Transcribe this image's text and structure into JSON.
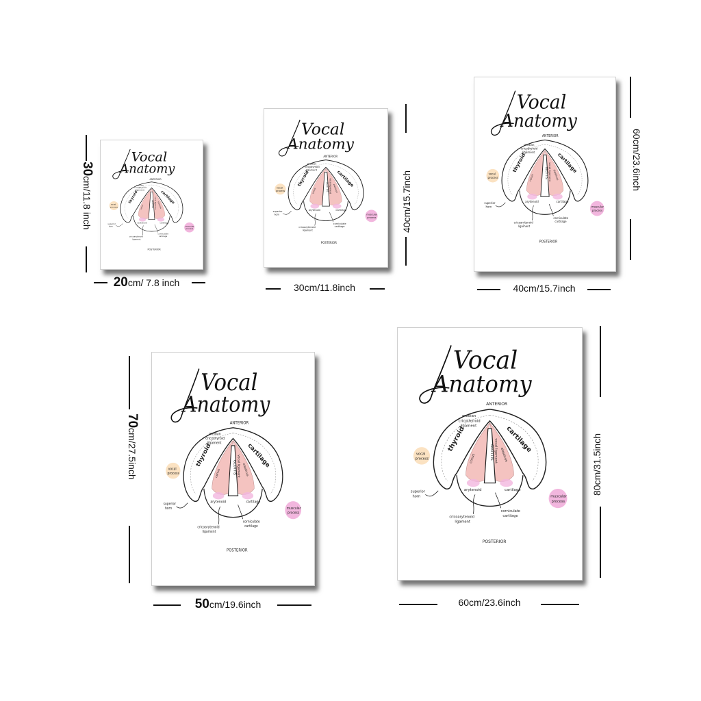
{
  "poster": {
    "title_line1": "Vocal",
    "title_line2": "Anatomy",
    "anterior": "ANTERIOR",
    "posterior": "POSTERIOR",
    "median_ligament": [
      "median",
      "cricothyroid",
      "ligament"
    ],
    "thyroid": "thyroid",
    "cartilage": "cartilage",
    "vocal_process": [
      "vocal",
      "process"
    ],
    "superior_horn": [
      "superior",
      "horn"
    ],
    "muscular_process": [
      "muscular",
      "process"
    ],
    "cricoarytenoid": [
      "cricoarytenoid",
      "ligament"
    ],
    "corniculate": [
      "corniculate",
      "cartilage"
    ],
    "glottis": "GLOTTIS",
    "vocal_ligament": "vocal ligament",
    "conus": "conus",
    "elasticus": "elasticus",
    "arytenoid": "arytenoid",
    "cartilage_small": "cartilage",
    "colors": {
      "pink": "#f4c3c0",
      "peach": "#fbe2c2",
      "magenta": "#f2b6de",
      "outline": "#222222"
    }
  },
  "sizes": [
    {
      "width_num": "20",
      "width_unit": "cm/ 7.8 inch",
      "height_num": "30",
      "height_unit": "cm/11.8 inch"
    },
    {
      "width_label": "30cm/11.8inch",
      "height_label": "40cm/15.7inch"
    },
    {
      "width_label": "40cm/15.7inch",
      "height_label": "60cm/23.6inch"
    },
    {
      "width_num": "50",
      "width_unit": "cm/19.6inch",
      "height_num": "70",
      "height_unit": "cm/27.5inch"
    },
    {
      "width_label": "60cm/23.6inch",
      "height_label": "80cm/31.5inch"
    }
  ]
}
